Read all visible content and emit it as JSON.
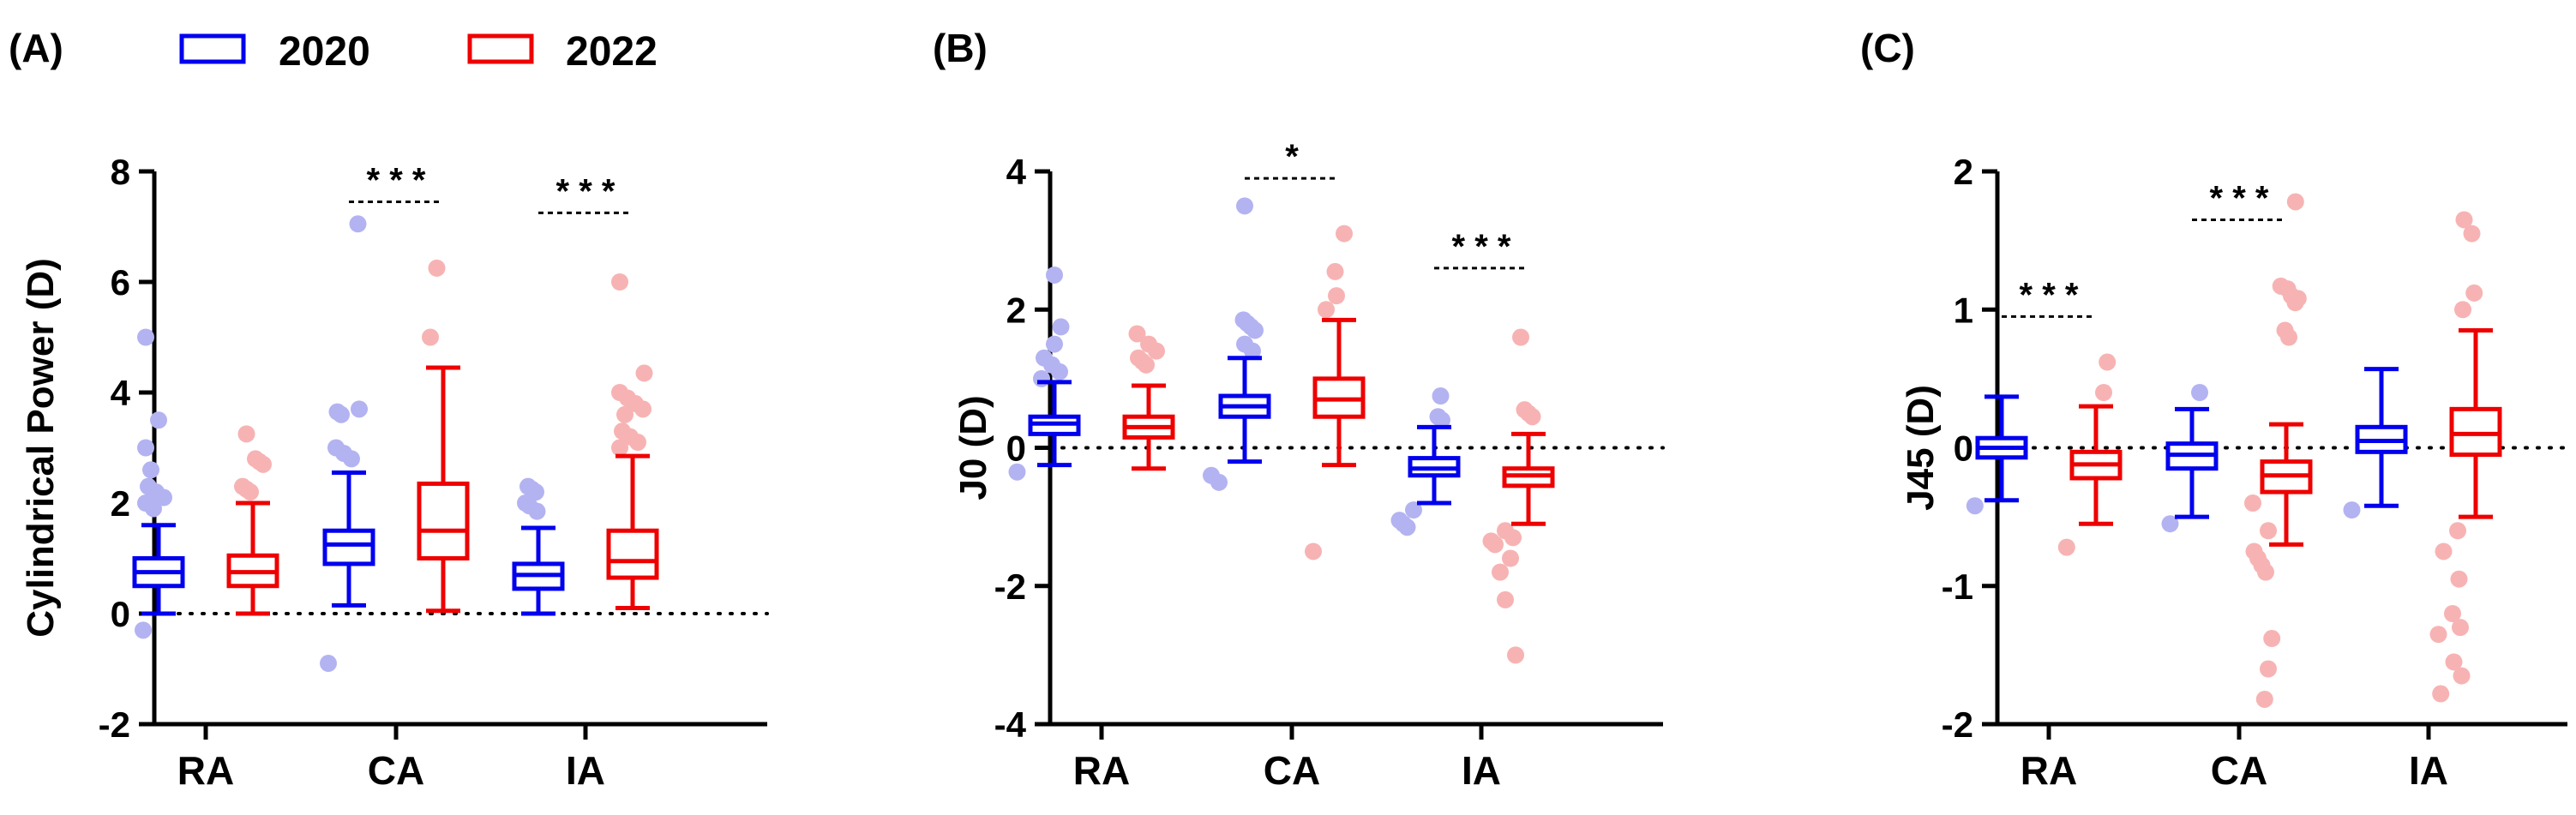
{
  "colors": {
    "y2020": "#0000ee",
    "y2022": "#ee0000",
    "y2020_outlier": "#b3b3f2",
    "y2022_outlier": "#f7b3b3",
    "axis": "#000000"
  },
  "legend": [
    {
      "label": "2020",
      "color_key": "y2020"
    },
    {
      "label": "2022",
      "color_key": "y2022"
    }
  ],
  "chart_data": [
    {
      "type": "box",
      "panel_label": "(A)",
      "ylabel": "Cylindrical Power  (D)",
      "ylim": [
        -2,
        8
      ],
      "yticks": [
        -2,
        0,
        2,
        4,
        6,
        8
      ],
      "ytick_labels": [
        "-2",
        "0",
        "2",
        "4",
        "6",
        "8"
      ],
      "reference_line": 0,
      "categories": [
        "RA",
        "CA",
        "IA"
      ],
      "series": [
        {
          "name": "2020",
          "boxes": [
            {
              "category": "RA",
              "min": 0.0,
              "q1": 0.5,
              "median": 0.75,
              "q3": 1.0,
              "max": 1.6,
              "outliers": [
                5.0,
                3.5,
                3.0,
                2.6,
                2.3,
                2.1,
                2.0,
                1.9,
                2.2,
                -0.3
              ]
            },
            {
              "category": "CA",
              "min": 0.15,
              "q1": 0.9,
              "median": 1.25,
              "q3": 1.5,
              "max": 2.55,
              "outliers": [
                7.05,
                3.7,
                3.65,
                3.6,
                3.0,
                2.9,
                2.8,
                -0.9
              ]
            },
            {
              "category": "IA",
              "min": 0.0,
              "q1": 0.45,
              "median": 0.7,
              "q3": 0.9,
              "max": 1.55,
              "outliers": [
                2.3,
                2.25,
                2.2,
                2.0,
                1.95,
                1.85
              ]
            }
          ]
        },
        {
          "name": "2022",
          "boxes": [
            {
              "category": "RA",
              "min": 0.0,
              "q1": 0.5,
              "median": 0.75,
              "q3": 1.05,
              "max": 2.0,
              "outliers": [
                3.25,
                2.8,
                2.75,
                2.7,
                2.3,
                2.25,
                2.2
              ]
            },
            {
              "category": "CA",
              "min": 0.05,
              "q1": 1.0,
              "median": 1.5,
              "q3": 2.35,
              "max": 4.45,
              "outliers": [
                6.25,
                5.0
              ]
            },
            {
              "category": "IA",
              "min": 0.1,
              "q1": 0.65,
              "median": 0.95,
              "q3": 1.5,
              "max": 2.85,
              "outliers": [
                6.0,
                4.35,
                4.0,
                3.9,
                3.8,
                3.7,
                3.6,
                3.3,
                3.2,
                3.1,
                3.0
              ]
            }
          ]
        }
      ],
      "significance": [
        {
          "category": "CA",
          "label": "* * *",
          "y": 7.45
        },
        {
          "category": "IA",
          "label": "* * *",
          "y": 7.25
        }
      ]
    },
    {
      "type": "box",
      "panel_label": "(B)",
      "ylabel": "J0 (D)",
      "ylim": [
        -4,
        4
      ],
      "yticks": [
        -4,
        -2,
        0,
        2,
        4
      ],
      "ytick_labels": [
        "-4",
        "-2",
        "0",
        "2",
        "4"
      ],
      "reference_line": 0,
      "categories": [
        "RA",
        "CA",
        "IA"
      ],
      "series": [
        {
          "name": "2020",
          "boxes": [
            {
              "category": "RA",
              "min": -0.25,
              "q1": 0.2,
              "median": 0.35,
              "q3": 0.45,
              "max": 0.95,
              "outliers": [
                2.5,
                1.75,
                1.5,
                1.3,
                1.2,
                1.1,
                1.0,
                -0.35
              ]
            },
            {
              "category": "CA",
              "min": -0.2,
              "q1": 0.45,
              "median": 0.6,
              "q3": 0.75,
              "max": 1.3,
              "outliers": [
                3.5,
                1.85,
                1.8,
                1.75,
                1.7,
                1.5,
                1.4,
                -0.4,
                -0.5
              ]
            },
            {
              "category": "IA",
              "min": -0.8,
              "q1": -0.4,
              "median": -0.3,
              "q3": -0.15,
              "max": 0.3,
              "outliers": [
                0.75,
                0.45,
                0.4,
                -0.9,
                -1.05,
                -1.1,
                -1.15
              ]
            }
          ]
        },
        {
          "name": "2022",
          "boxes": [
            {
              "category": "RA",
              "min": -0.3,
              "q1": 0.15,
              "median": 0.3,
              "q3": 0.45,
              "max": 0.9,
              "outliers": [
                1.65,
                1.5,
                1.4,
                1.3,
                1.25,
                1.2
              ]
            },
            {
              "category": "CA",
              "min": -0.25,
              "q1": 0.45,
              "median": 0.7,
              "q3": 1.0,
              "max": 1.85,
              "outliers": [
                3.1,
                2.55,
                2.2,
                2.0,
                -1.5
              ]
            },
            {
              "category": "IA",
              "min": -1.1,
              "q1": -0.55,
              "median": -0.4,
              "q3": -0.3,
              "max": 0.2,
              "outliers": [
                1.6,
                0.55,
                0.5,
                0.45,
                -1.2,
                -1.3,
                -1.35,
                -1.4,
                -1.6,
                -1.8,
                -2.2,
                -3.0
              ]
            }
          ]
        }
      ],
      "significance": [
        {
          "category": "CA",
          "label": "*",
          "y": 3.9
        },
        {
          "category": "IA",
          "label": "* * *",
          "y": 2.6
        }
      ]
    },
    {
      "type": "box",
      "panel_label": "(C)",
      "ylabel": "J45 (D)",
      "ylim": [
        -2,
        2
      ],
      "yticks": [
        -2,
        -1,
        0,
        1,
        2
      ],
      "ytick_labels": [
        "-2",
        "-1",
        "0",
        "1",
        "2"
      ],
      "reference_line": 0,
      "categories": [
        "RA",
        "CA",
        "IA"
      ],
      "series": [
        {
          "name": "2020",
          "boxes": [
            {
              "category": "RA",
              "min": -0.38,
              "q1": -0.07,
              "median": 0.0,
              "q3": 0.07,
              "max": 0.37,
              "outliers": [
                -0.42
              ]
            },
            {
              "category": "CA",
              "min": -0.5,
              "q1": -0.15,
              "median": -0.05,
              "q3": 0.03,
              "max": 0.28,
              "outliers": [
                0.4,
                -0.55
              ]
            },
            {
              "category": "IA",
              "min": -0.42,
              "q1": -0.03,
              "median": 0.05,
              "q3": 0.15,
              "max": 0.57,
              "outliers": [
                -0.45
              ]
            }
          ]
        },
        {
          "name": "2022",
          "boxes": [
            {
              "category": "RA",
              "min": -0.55,
              "q1": -0.22,
              "median": -0.12,
              "q3": -0.03,
              "max": 0.3,
              "outliers": [
                0.62,
                0.4,
                -0.72
              ]
            },
            {
              "category": "CA",
              "min": -0.7,
              "q1": -0.32,
              "median": -0.2,
              "q3": -0.1,
              "max": 0.17,
              "outliers": [
                1.78,
                1.17,
                1.15,
                1.1,
                1.08,
                1.05,
                0.85,
                0.8,
                -0.4,
                -0.6,
                -0.75,
                -0.8,
                -0.85,
                -0.9,
                -1.38,
                -1.6,
                -1.82
              ]
            },
            {
              "category": "IA",
              "min": -0.5,
              "q1": -0.05,
              "median": 0.1,
              "q3": 0.28,
              "max": 0.85,
              "outliers": [
                1.65,
                1.55,
                1.12,
                1.0,
                -0.6,
                -0.75,
                -0.95,
                -1.2,
                -1.3,
                -1.35,
                -1.55,
                -1.65,
                -1.78
              ]
            }
          ]
        }
      ],
      "significance": [
        {
          "category": "CA",
          "label": "* * *",
          "y": 1.65
        },
        {
          "category": "RA",
          "label": "* * *",
          "y": 0.95
        }
      ]
    }
  ]
}
